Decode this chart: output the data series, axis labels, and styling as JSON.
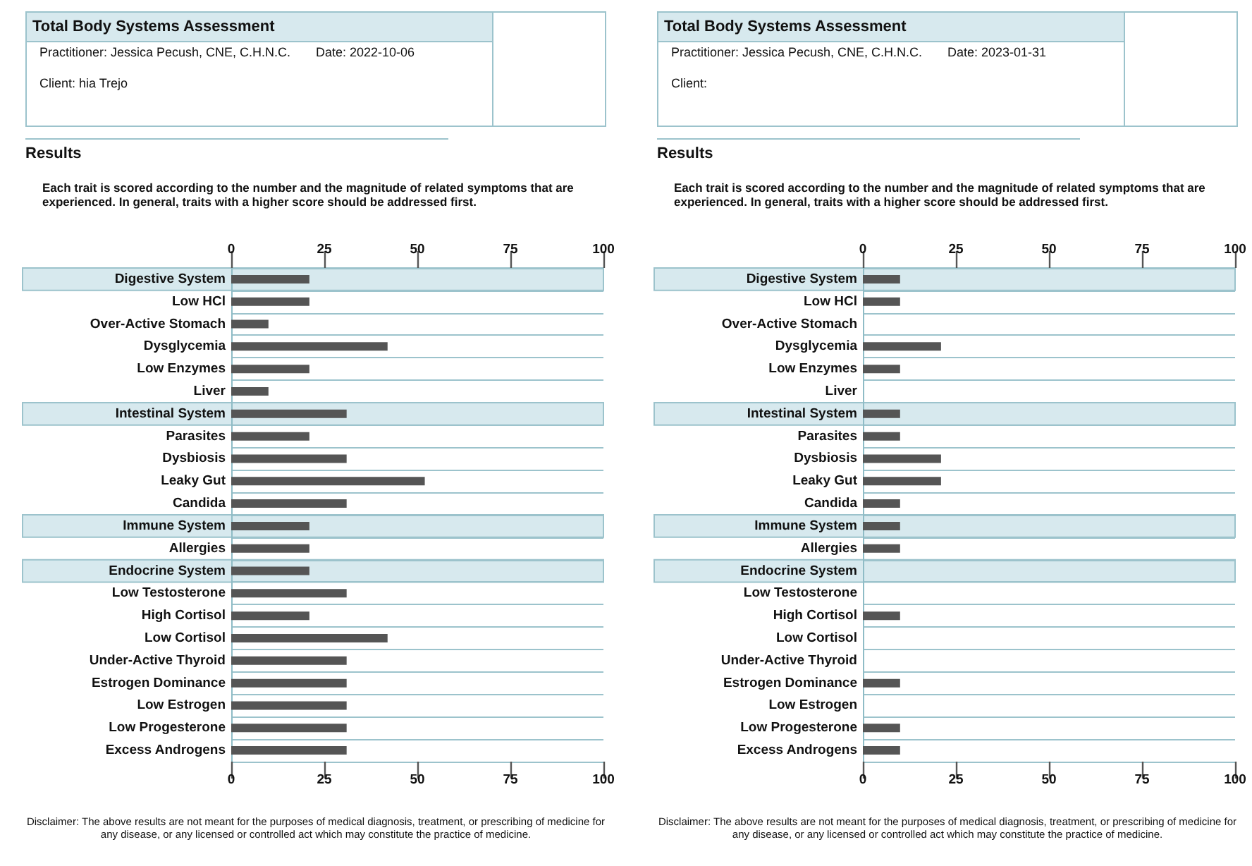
{
  "chart_data": [
    {
      "type": "bar",
      "orientation": "horizontal",
      "title": "Total Body Systems Assessment",
      "annotations": [
        "Practitioner: Jessica Pecush, CNE, C.H.N.C.",
        "Date: 2022-10-06",
        "Client: hia Trejo",
        "Results",
        "Each trait is scored according to the number and the magnitude of related symptoms that are experienced. In general, traits with a higher score should be addressed first.",
        "Disclaimer: The above results are not meant for the purposes of medical diagnosis, treatment, or prescribing of medicine for any disease, or any licensed or controlled act which may constitute the practice of medicine."
      ],
      "categories": [
        "Digestive System",
        "Low HCl",
        "Over-Active Stomach",
        "Dysglycemia",
        "Low Enzymes",
        "Liver",
        "Intestinal System",
        "Parasites",
        "Dysbiosis",
        "Leaky Gut",
        "Candida",
        "Immune System",
        "Allergies",
        "Endocrine System",
        "Low Testosterone",
        "High Cortisol",
        "Low Cortisol",
        "Under-Active Thyroid",
        "Estrogen Dominance",
        "Low Estrogen",
        "Low Progesterone",
        "Excess Androgens"
      ],
      "values": [
        21,
        21,
        10,
        42,
        21,
        10,
        31,
        21,
        31,
        52,
        31,
        21,
        21,
        21,
        31,
        21,
        42,
        31,
        31,
        31,
        31,
        31
      ],
      "color": "#555555",
      "xlim": [
        0,
        100
      ],
      "xticks": [
        0,
        25,
        50,
        75,
        100
      ],
      "x2lim": [
        0,
        100
      ],
      "x2ticks": [
        0,
        25,
        50,
        75,
        100
      ],
      "grid": "y",
      "bands": [
        {
          "axis": "y",
          "from": "Digestive System",
          "to": "Digestive System",
          "color": "#d7e9ee"
        },
        {
          "axis": "y",
          "from": "Intestinal System",
          "to": "Intestinal System",
          "color": "#d7e9ee"
        },
        {
          "axis": "y",
          "from": "Immune System",
          "to": "Immune System",
          "color": "#d7e9ee"
        },
        {
          "axis": "y",
          "from": "Endocrine System",
          "to": "Endocrine System",
          "color": "#d7e9ee"
        }
      ]
    },
    {
      "type": "bar",
      "orientation": "horizontal",
      "title": "Total Body Systems Assessment",
      "annotations": [
        "Practitioner: Jessica Pecush, CNE, C.H.N.C.",
        "Date: 2023-01-31",
        "Client:",
        "Results",
        "Each trait is scored according to the number and the magnitude of related symptoms that are experienced. In general, traits with a higher score should be addressed first.",
        "Disclaimer: The above results are not meant for the purposes of medical diagnosis, treatment, or prescribing of medicine for any disease, or any licensed or controlled act which may constitute the practice of medicine."
      ],
      "categories": [
        "Digestive System",
        "Low HCl",
        "Over-Active Stomach",
        "Dysglycemia",
        "Low Enzymes",
        "Liver",
        "Intestinal System",
        "Parasites",
        "Dysbiosis",
        "Leaky Gut",
        "Candida",
        "Immune System",
        "Allergies",
        "Endocrine System",
        "Low Testosterone",
        "High Cortisol",
        "Low Cortisol",
        "Under-Active Thyroid",
        "Estrogen Dominance",
        "Low Estrogen",
        "Low Progesterone",
        "Excess Androgens"
      ],
      "values": [
        10,
        10,
        0,
        21,
        10,
        0,
        10,
        10,
        21,
        21,
        10,
        10,
        10,
        0,
        0,
        10,
        0,
        0,
        10,
        0,
        10,
        10
      ],
      "color": "#555555",
      "xlim": [
        0,
        100
      ],
      "xticks": [
        0,
        25,
        50,
        75,
        100
      ],
      "x2lim": [
        0,
        100
      ],
      "x2ticks": [
        0,
        25,
        50,
        75,
        100
      ],
      "grid": "y",
      "bands": [
        {
          "axis": "y",
          "from": "Digestive System",
          "to": "Digestive System",
          "color": "#d7e9ee"
        },
        {
          "axis": "y",
          "from": "Intestinal System",
          "to": "Intestinal System",
          "color": "#d7e9ee"
        },
        {
          "axis": "y",
          "from": "Immune System",
          "to": "Immune System",
          "color": "#d7e9ee"
        },
        {
          "axis": "y",
          "from": "Endocrine System",
          "to": "Endocrine System",
          "color": "#d7e9ee"
        }
      ]
    }
  ]
}
